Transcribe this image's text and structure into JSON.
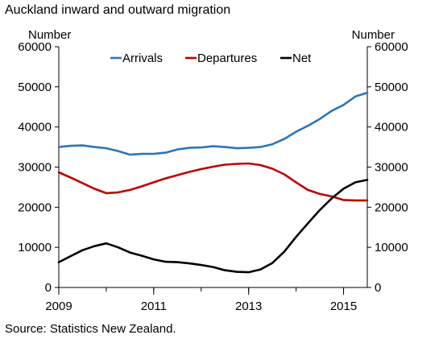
{
  "header": {
    "title": "Auckland inward and outward migration"
  },
  "footer": {
    "source": "Source: Statistics New Zealand."
  },
  "chart_data": {
    "type": "line",
    "title": "Auckland inward and outward migration",
    "ylabel_left": "Number",
    "ylabel_right": "Number",
    "xlim": [
      2009,
      2015.5
    ],
    "ylim": [
      0,
      60000
    ],
    "x_ticks": [
      "2009",
      "2011",
      "2013",
      "2015"
    ],
    "y_ticks": [
      "0",
      "10000",
      "20000",
      "30000",
      "40000",
      "50000",
      "60000"
    ],
    "legend_position": "top-center",
    "grid": false,
    "series": [
      {
        "name": "Arrivals",
        "color": "#2E75B6",
        "x": [
          2009.0,
          2009.25,
          2009.5,
          2009.75,
          2010.0,
          2010.25,
          2010.5,
          2010.75,
          2011.0,
          2011.25,
          2011.5,
          2011.75,
          2012.0,
          2012.25,
          2012.5,
          2012.75,
          2013.0,
          2013.25,
          2013.5,
          2013.75,
          2014.0,
          2014.25,
          2014.5,
          2014.75,
          2015.0,
          2015.25,
          2015.5
        ],
        "values": [
          35000,
          35300,
          35400,
          35000,
          34700,
          34000,
          33100,
          33300,
          33300,
          33600,
          34400,
          34800,
          34900,
          35200,
          35000,
          34700,
          34800,
          35000,
          35700,
          37000,
          38800,
          40300,
          42000,
          44000,
          45500,
          47600,
          48500
        ]
      },
      {
        "name": "Departures",
        "color": "#C00000",
        "x": [
          2009.0,
          2009.25,
          2009.5,
          2009.75,
          2010.0,
          2010.25,
          2010.5,
          2010.75,
          2011.0,
          2011.25,
          2011.5,
          2011.75,
          2012.0,
          2012.25,
          2012.5,
          2012.75,
          2013.0,
          2013.25,
          2013.5,
          2013.75,
          2014.0,
          2014.25,
          2014.5,
          2014.75,
          2015.0,
          2015.25,
          2015.5
        ],
        "values": [
          28700,
          27400,
          26000,
          24600,
          23500,
          23700,
          24300,
          25200,
          26200,
          27200,
          28000,
          28800,
          29500,
          30100,
          30600,
          30800,
          30900,
          30500,
          29600,
          28200,
          26200,
          24300,
          23300,
          22700,
          21800,
          21700,
          21700
        ]
      },
      {
        "name": "Net",
        "color": "#000000",
        "x": [
          2009.0,
          2009.25,
          2009.5,
          2009.75,
          2010.0,
          2010.25,
          2010.5,
          2010.75,
          2011.0,
          2011.25,
          2011.5,
          2011.75,
          2012.0,
          2012.25,
          2012.5,
          2012.75,
          2013.0,
          2013.25,
          2013.5,
          2013.75,
          2014.0,
          2014.25,
          2014.5,
          2014.75,
          2015.0,
          2015.25,
          2015.5
        ],
        "values": [
          6300,
          7800,
          9300,
          10300,
          11000,
          10000,
          8700,
          7900,
          7000,
          6400,
          6300,
          6000,
          5600,
          5100,
          4300,
          3900,
          3800,
          4500,
          6100,
          8900,
          12600,
          16000,
          19300,
          22200,
          24600,
          26200,
          26800
        ]
      }
    ]
  }
}
